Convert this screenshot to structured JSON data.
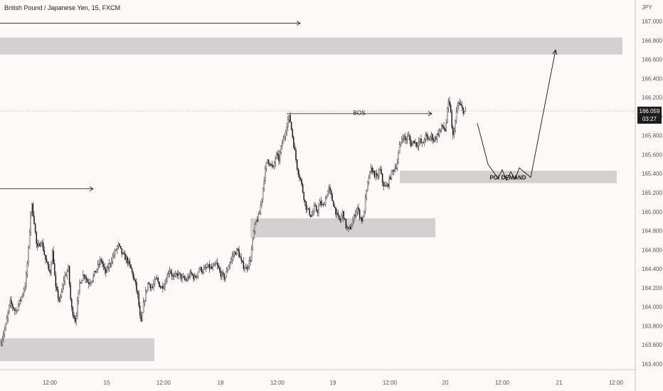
{
  "title": "British Pound / Japanese Yen, 15, FXCM",
  "currency": "JPY",
  "last_price": "166.059",
  "countdown": "03:27",
  "chart_data": {
    "type": "candlestick",
    "symbol": "GBPJPY",
    "interval": "15",
    "source": "FXCM",
    "y_axis": {
      "ticks": [
        "167.000",
        "166.800",
        "166.600",
        "166.400",
        "166.200",
        "166.000",
        "165.800",
        "165.600",
        "165.400",
        "165.200",
        "165.000",
        "164.800",
        "164.600",
        "164.400",
        "164.200",
        "164.000",
        "163.800",
        "163.600",
        "163.400"
      ],
      "ylim": [
        163.35,
        167.1
      ]
    },
    "x_axis": {
      "ticks": [
        {
          "label": "12:00",
          "t": 70
        },
        {
          "label": "15",
          "t": 150
        },
        {
          "label": "12:00",
          "t": 230
        },
        {
          "label": "18",
          "t": 310
        },
        {
          "label": "12:00",
          "t": 390
        },
        {
          "label": "19",
          "t": 468
        },
        {
          "label": "12:00",
          "t": 548
        },
        {
          "label": "20",
          "t": 626
        },
        {
          "label": "12:00",
          "t": 706
        },
        {
          "label": "21",
          "t": 786
        },
        {
          "label": "12:00",
          "t": 866
        }
      ],
      "xlim": [
        0,
        893
      ]
    },
    "price_path": [
      [
        0,
        163.6
      ],
      [
        8,
        163.8
      ],
      [
        14,
        164.05
      ],
      [
        22,
        163.95
      ],
      [
        30,
        164.1
      ],
      [
        36,
        164.25
      ],
      [
        40,
        164.6
      ],
      [
        44,
        165.1
      ],
      [
        48,
        164.9
      ],
      [
        52,
        164.6
      ],
      [
        58,
        164.7
      ],
      [
        64,
        164.5
      ],
      [
        70,
        164.35
      ],
      [
        74,
        164.6
      ],
      [
        78,
        164.2
      ],
      [
        84,
        164.05
      ],
      [
        90,
        164.3
      ],
      [
        96,
        164.4
      ],
      [
        100,
        164.0
      ],
      [
        106,
        163.85
      ],
      [
        112,
        164.25
      ],
      [
        118,
        164.35
      ],
      [
        124,
        164.25
      ],
      [
        130,
        164.3
      ],
      [
        136,
        164.4
      ],
      [
        142,
        164.5
      ],
      [
        148,
        164.35
      ],
      [
        154,
        164.45
      ],
      [
        160,
        164.55
      ],
      [
        166,
        164.65
      ],
      [
        172,
        164.55
      ],
      [
        178,
        164.5
      ],
      [
        184,
        164.4
      ],
      [
        190,
        164.25
      ],
      [
        194,
        164.1
      ],
      [
        198,
        163.8
      ],
      [
        202,
        164.05
      ],
      [
        208,
        164.25
      ],
      [
        214,
        164.2
      ],
      [
        220,
        164.3
      ],
      [
        226,
        164.2
      ],
      [
        232,
        164.25
      ],
      [
        238,
        164.4
      ],
      [
        244,
        164.3
      ],
      [
        250,
        164.35
      ],
      [
        256,
        164.3
      ],
      [
        262,
        164.28
      ],
      [
        268,
        164.35
      ],
      [
        274,
        164.3
      ],
      [
        280,
        164.4
      ],
      [
        286,
        164.38
      ],
      [
        292,
        164.42
      ],
      [
        298,
        164.4
      ],
      [
        304,
        164.45
      ],
      [
        310,
        164.35
      ],
      [
        316,
        164.3
      ],
      [
        322,
        164.45
      ],
      [
        328,
        164.55
      ],
      [
        334,
        164.6
      ],
      [
        340,
        164.45
      ],
      [
        346,
        164.4
      ],
      [
        352,
        164.5
      ],
      [
        356,
        164.75
      ],
      [
        360,
        164.9
      ],
      [
        364,
        164.95
      ],
      [
        368,
        165.15
      ],
      [
        372,
        165.4
      ],
      [
        376,
        165.55
      ],
      [
        380,
        165.5
      ],
      [
        384,
        165.45
      ],
      [
        388,
        165.6
      ],
      [
        392,
        165.55
      ],
      [
        396,
        165.7
      ],
      [
        400,
        165.8
      ],
      [
        404,
        165.95
      ],
      [
        407,
        166.0
      ],
      [
        410,
        165.85
      ],
      [
        414,
        165.65
      ],
      [
        418,
        165.45
      ],
      [
        422,
        165.35
      ],
      [
        426,
        165.2
      ],
      [
        430,
        165.05
      ],
      [
        434,
        165.0
      ],
      [
        438,
        164.95
      ],
      [
        442,
        165.05
      ],
      [
        446,
        165.0
      ],
      [
        450,
        165.1
      ],
      [
        454,
        165.05
      ],
      [
        458,
        165.15
      ],
      [
        462,
        165.25
      ],
      [
        466,
        165.15
      ],
      [
        470,
        165.05
      ],
      [
        474,
        164.95
      ],
      [
        478,
        164.9
      ],
      [
        482,
        165.0
      ],
      [
        486,
        164.85
      ],
      [
        490,
        164.8
      ],
      [
        494,
        164.85
      ],
      [
        498,
        164.95
      ],
      [
        502,
        165.05
      ],
      [
        506,
        164.95
      ],
      [
        510,
        164.9
      ],
      [
        514,
        165.15
      ],
      [
        518,
        165.35
      ],
      [
        522,
        165.45
      ],
      [
        526,
        165.4
      ],
      [
        530,
        165.35
      ],
      [
        534,
        165.45
      ],
      [
        538,
        165.3
      ],
      [
        542,
        165.25
      ],
      [
        546,
        165.3
      ],
      [
        550,
        165.4
      ],
      [
        554,
        165.45
      ],
      [
        558,
        165.5
      ],
      [
        562,
        165.7
      ],
      [
        566,
        165.8
      ],
      [
        570,
        165.75
      ],
      [
        574,
        165.8
      ],
      [
        578,
        165.7
      ],
      [
        582,
        165.75
      ],
      [
        586,
        165.7
      ],
      [
        590,
        165.75
      ],
      [
        594,
        165.7
      ],
      [
        598,
        165.8
      ],
      [
        602,
        165.75
      ],
      [
        606,
        165.8
      ],
      [
        610,
        165.75
      ],
      [
        614,
        165.8
      ],
      [
        618,
        165.85
      ],
      [
        622,
        165.9
      ],
      [
        626,
        165.85
      ],
      [
        630,
        166.15
      ],
      [
        634,
        166.05
      ],
      [
        636,
        165.75
      ],
      [
        640,
        165.95
      ],
      [
        644,
        166.15
      ],
      [
        648,
        166.1
      ],
      [
        652,
        166.05
      ],
      [
        656,
        166.06
      ]
    ],
    "projection_path": [
      [
        671,
        165.93
      ],
      [
        686,
        165.5
      ],
      [
        700,
        165.35
      ],
      [
        706,
        165.44
      ],
      [
        712,
        165.33
      ],
      [
        718,
        165.42
      ],
      [
        724,
        165.34
      ],
      [
        730,
        165.46
      ],
      [
        746,
        165.36
      ],
      [
        781,
        166.7
      ]
    ],
    "zones": [
      {
        "x0": 0,
        "x1": 875,
        "y_low": 166.65,
        "y_high": 166.83
      },
      {
        "x0": 562,
        "x1": 867,
        "y_low": 165.3,
        "y_high": 165.43
      },
      {
        "x0": 352,
        "x1": 612,
        "y_low": 164.73,
        "y_high": 164.93
      },
      {
        "x0": 0,
        "x1": 217,
        "y_low": 163.43,
        "y_high": 163.67
      }
    ],
    "arrows": [
      {
        "x0": 0,
        "x1": 422,
        "y": 166.98
      },
      {
        "x0": 0,
        "x1": 131,
        "y": 165.24
      },
      {
        "x0": 403,
        "x1": 607,
        "y": 166.03
      }
    ],
    "current_price": 166.059,
    "annotations": [
      {
        "text": "BOS",
        "x": 505,
        "y": 166.04
      },
      {
        "text": "POI DEMAND",
        "x": 714,
        "y": 165.36
      }
    ]
  }
}
